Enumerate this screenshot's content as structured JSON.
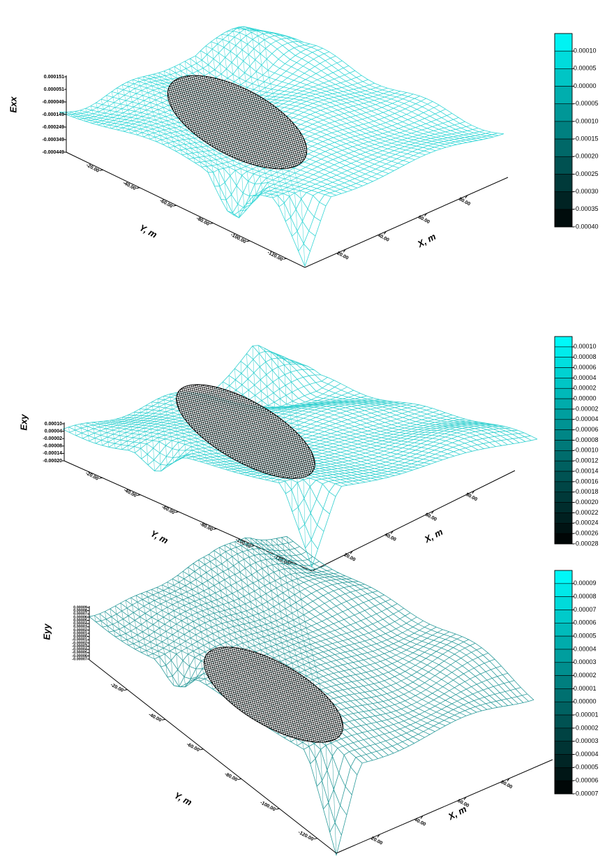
{
  "chart_data": [
    {
      "type": "surface",
      "zlabel": "Exx",
      "xlabel": "X, m",
      "ylabel": "Y, m",
      "color": "#33d6d6",
      "zlim": [
        -0.000449,
        0.000151
      ],
      "zticks": [
        0.000151,
        5.1e-05,
        -4.9e-05,
        -0.000149,
        -0.000249,
        -0.000349,
        -0.000449
      ],
      "xlim": [
        0,
        100
      ],
      "xticks": [
        {
          "value": 20,
          "label": "20.00"
        },
        {
          "value": 40,
          "label": "40.00"
        },
        {
          "value": 60,
          "label": "60.00"
        },
        {
          "value": 80,
          "label": "80.00"
        }
      ],
      "ylim": [
        0,
        -130
      ],
      "yticks": [
        {
          "value": -20,
          "label": "-20.00"
        },
        {
          "value": -40,
          "label": "-40.00"
        },
        {
          "value": -60,
          "label": "-60.00"
        },
        {
          "value": -80,
          "label": "-80.00"
        },
        {
          "value": -100,
          "label": "-100.00"
        },
        {
          "value": -120,
          "label": "-120.00"
        }
      ],
      "colorbar": {
        "lim": [
          -0.0004,
          0.00015
        ],
        "levels": [
          {
            "value": 0.0001,
            "label": "0.00010"
          },
          {
            "value": 5e-05,
            "label": "0.00005"
          },
          {
            "value": 0,
            "label": "0.00000"
          },
          {
            "value": -5e-05,
            "label": "-0.00005"
          },
          {
            "value": -0.0001,
            "label": "-0.00010"
          },
          {
            "value": -0.00015,
            "label": "-0.00015"
          },
          {
            "value": -0.0002,
            "label": "-0.00020"
          },
          {
            "value": -0.00025,
            "label": "-0.00025"
          },
          {
            "value": -0.0003,
            "label": "-0.00030"
          },
          {
            "value": -0.00035,
            "label": "-0.00035"
          },
          {
            "value": -0.0004,
            "label": "-0.00040"
          }
        ]
      }
    },
    {
      "type": "surface",
      "zlabel": "Exy",
      "xlabel": "X, m",
      "ylabel": "Y, m",
      "color": "#2fcfcf",
      "zlim": [
        -0.0002,
        0.0001
      ],
      "zticks": [
        {
          "value": 0.0001,
          "label": "0.00010"
        },
        {
          "value": 4e-05,
          "label": "0.00004"
        },
        {
          "value": -2e-05,
          "label": "-0.00002"
        },
        {
          "value": -8e-05,
          "label": "-0.00008"
        },
        {
          "value": -0.00014,
          "label": "-0.00014"
        },
        {
          "value": -0.0002,
          "label": "-0.00020"
        }
      ],
      "xlim": [
        0,
        100
      ],
      "xticks": [
        {
          "value": 20,
          "label": "20.00"
        },
        {
          "value": 40,
          "label": "40.00"
        },
        {
          "value": 60,
          "label": "60.00"
        },
        {
          "value": 80,
          "label": "80.00"
        }
      ],
      "ylim": [
        0,
        -130
      ],
      "yticks": [
        {
          "value": -20,
          "label": "-20.00"
        },
        {
          "value": -40,
          "label": "-40.00"
        },
        {
          "value": -60,
          "label": "-60.00"
        },
        {
          "value": -80,
          "label": "-80.00"
        },
        {
          "value": -100,
          "label": "-100.00"
        },
        {
          "value": -120,
          "label": "-120.00"
        }
      ],
      "colorbar": {
        "lim": [
          -0.00028,
          0.00012
        ],
        "levels": [
          {
            "value": 0.0001,
            "label": "0.00010"
          },
          {
            "value": 8e-05,
            "label": "0.00008"
          },
          {
            "value": 6e-05,
            "label": "0.00006"
          },
          {
            "value": 4e-05,
            "label": "0.00004"
          },
          {
            "value": 2e-05,
            "label": "0.00002"
          },
          {
            "value": 0,
            "label": "0.00000"
          },
          {
            "value": -2e-05,
            "label": "-0.00002"
          },
          {
            "value": -4e-05,
            "label": "-0.00004"
          },
          {
            "value": -6e-05,
            "label": "-0.00006"
          },
          {
            "value": -8e-05,
            "label": "-0.00008"
          },
          {
            "value": -0.0001,
            "label": "-0.00010"
          },
          {
            "value": -0.00012,
            "label": "-0.00012"
          },
          {
            "value": -0.00014,
            "label": "-0.00014"
          },
          {
            "value": -0.00016,
            "label": "-0.00016"
          },
          {
            "value": -0.00018,
            "label": "-0.00018"
          },
          {
            "value": -0.0002,
            "label": "-0.00020"
          },
          {
            "value": -0.00022,
            "label": "-0.00022"
          },
          {
            "value": -0.00024,
            "label": "-0.00024"
          },
          {
            "value": -0.00026,
            "label": "-0.00026"
          },
          {
            "value": -0.00028,
            "label": "-0.00028"
          }
        ]
      }
    },
    {
      "type": "surface",
      "zlabel": "Eyy",
      "xlabel": "X, m",
      "ylabel": "Y, m",
      "color": "#2a9a9a",
      "zlim": [
        -7e-05,
        9e-05
      ],
      "zticks": [
        {
          "value": 9e-05,
          "label": "0.00009"
        },
        {
          "value": 8e-05,
          "label": "0.00008"
        },
        {
          "value": 7e-05,
          "label": "0.00007"
        },
        {
          "value": 6e-05,
          "label": "0.00006"
        },
        {
          "value": 5e-05,
          "label": "0.00005"
        },
        {
          "value": 4e-05,
          "label": "0.00004"
        },
        {
          "value": 3e-05,
          "label": "0.00003"
        },
        {
          "value": 2e-05,
          "label": "0.00002"
        },
        {
          "value": 1e-05,
          "label": "0.00001"
        },
        {
          "value": 0,
          "label": "0.00000"
        },
        {
          "value": -1e-05,
          "label": "-0.00001"
        },
        {
          "value": -2e-05,
          "label": "-0.00002"
        },
        {
          "value": -3e-05,
          "label": "-0.00003"
        },
        {
          "value": -4e-05,
          "label": "-0.00004"
        },
        {
          "value": -5e-05,
          "label": "-0.00005"
        },
        {
          "value": -6e-05,
          "label": "-0.00006"
        },
        {
          "value": -7e-05,
          "label": "-0.00007"
        }
      ],
      "xlim": [
        0,
        100
      ],
      "xticks": [
        {
          "value": 20,
          "label": "20.00"
        },
        {
          "value": 40,
          "label": "40.00"
        },
        {
          "value": 60,
          "label": "60.00"
        },
        {
          "value": 80,
          "label": "80.00"
        }
      ],
      "ylim": [
        0,
        -130
      ],
      "yticks": [
        {
          "value": -20,
          "label": "-20.00"
        },
        {
          "value": -40,
          "label": "-40.00"
        },
        {
          "value": -60,
          "label": "-60.00"
        },
        {
          "value": -80,
          "label": "-80.00"
        },
        {
          "value": -100,
          "label": "-100.00"
        },
        {
          "value": -120,
          "label": "-120.00"
        }
      ],
      "colorbar": {
        "lim": [
          -7e-05,
          0.0001
        ],
        "levels": [
          {
            "value": 9e-05,
            "label": "0.00009"
          },
          {
            "value": 8e-05,
            "label": "0.00008"
          },
          {
            "value": 7e-05,
            "label": "0.00007"
          },
          {
            "value": 6e-05,
            "label": "0.00006"
          },
          {
            "value": 5e-05,
            "label": "0.00005"
          },
          {
            "value": 4e-05,
            "label": "0.00004"
          },
          {
            "value": 3e-05,
            "label": "0.00003"
          },
          {
            "value": 2e-05,
            "label": "0.00002"
          },
          {
            "value": 1e-05,
            "label": "0.00001"
          },
          {
            "value": 0,
            "label": "0.00000"
          },
          {
            "value": -1e-05,
            "label": "-0.00001"
          },
          {
            "value": -2e-05,
            "label": "-0.00002"
          },
          {
            "value": -3e-05,
            "label": "-0.00003"
          },
          {
            "value": -4e-05,
            "label": "-0.00004"
          },
          {
            "value": -5e-05,
            "label": "-0.00005"
          },
          {
            "value": -6e-05,
            "label": "-0.00006"
          },
          {
            "value": -7e-05,
            "label": "-0.00007"
          }
        ]
      }
    }
  ]
}
